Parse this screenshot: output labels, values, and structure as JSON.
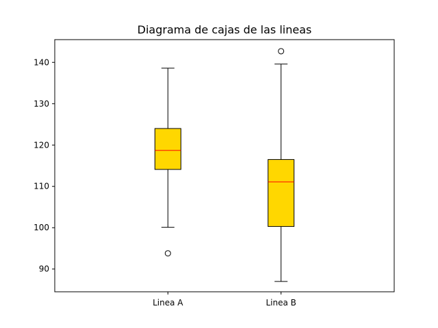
{
  "chart_data": {
    "type": "boxplot",
    "title": "Diagrama de cajas de las lineas",
    "xlabel": "",
    "ylabel": "",
    "categories": [
      "Linea A",
      "Linea B"
    ],
    "ylim": [
      84.5,
      145.5
    ],
    "yticks": [
      90,
      100,
      110,
      120,
      130,
      140
    ],
    "grid": false,
    "colors": {
      "box_fill": "#FFD700",
      "median": "#FF0000",
      "edge": "#000000"
    },
    "series": [
      {
        "category": "Linea A",
        "whisker_low": 100.1,
        "q1": 114.1,
        "median": 118.7,
        "q3": 124.0,
        "whisker_high": 138.6,
        "outliers": [
          93.8
        ]
      },
      {
        "category": "Linea B",
        "whisker_low": 87.0,
        "q1": 100.3,
        "median": 111.1,
        "q3": 116.5,
        "whisker_high": 139.6,
        "outliers": [
          142.7
        ]
      }
    ]
  }
}
